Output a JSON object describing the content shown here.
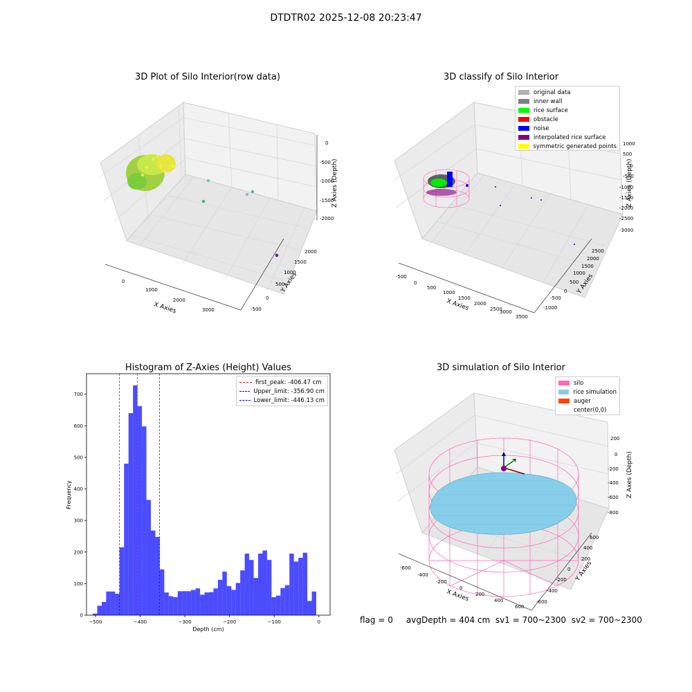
{
  "suptitle": "DTDTR02 2025-12-08 20:23:47",
  "panels": {
    "raw": {
      "title": "3D Plot of Silo Interior(row data)",
      "xlabel": "X Axies",
      "ylabel": "Y Axies",
      "zlabel": "Z Axies (Depth)",
      "xticks": [
        "0",
        "1000",
        "2000",
        "3000"
      ],
      "yticks": [
        "-500",
        "0",
        "500",
        "1000",
        "1500",
        "2000"
      ],
      "zticks": [
        "0",
        "-500",
        "-1000",
        "-1500",
        "-2000"
      ]
    },
    "classify": {
      "title": "3D classify of Silo Interior",
      "xlabel": "X Axies",
      "ylabel": "Y Axies",
      "zlabel": "Z Axies (Depth)",
      "xticks": [
        "-500",
        "0",
        "500",
        "1000",
        "1500",
        "2000",
        "2500",
        "3000",
        "3500"
      ],
      "yticks": [
        "-1000",
        "-500",
        "0",
        "500",
        "1000",
        "1500",
        "2000",
        "2500"
      ],
      "zticks": [
        "1000",
        "500",
        "0",
        "-500",
        "-1000",
        "-1500",
        "-2000",
        "-2500",
        "-3000"
      ],
      "legend": [
        {
          "label": "original data",
          "color": "#b0b0b0"
        },
        {
          "label": "inner wall",
          "color": "#808080"
        },
        {
          "label": "rice surface",
          "color": "#00ff00"
        },
        {
          "label": "obstacle",
          "color": "#ff0000"
        },
        {
          "label": "noise",
          "color": "#0000ff"
        },
        {
          "label": "interpolated rice surface",
          "color": "#800080"
        },
        {
          "label": "symmetric generated points",
          "color": "#ffff00"
        }
      ]
    },
    "simulation": {
      "title": "3D simulation of Silo Interior",
      "xlabel": "X Axies",
      "ylabel": "Y Axies",
      "zlabel": "Z Axes (Depth)",
      "xticks": [
        "-600",
        "-400",
        "-200",
        "0",
        "200",
        "400",
        "600"
      ],
      "yticks": [
        "-600",
        "-400",
        "-200",
        "0",
        "200",
        "400",
        "600"
      ],
      "zticks": [
        "200",
        "0",
        "-200",
        "-400",
        "-600",
        "-800"
      ],
      "legend": [
        {
          "label": "silo",
          "color": "#ff69b4"
        },
        {
          "label": "rice simulation",
          "color": "#87ceeb"
        },
        {
          "label": "auger",
          "color": "#ff4500"
        },
        {
          "label": "center(0,0)",
          "color": ""
        }
      ]
    }
  },
  "chart_data": {
    "type": "bar",
    "title": "Histogram of Z-Axies (Height) Values",
    "xlabel": "Depth (cm)",
    "ylabel": "Frequency",
    "xlim": [
      -520,
      25
    ],
    "ylim": [
      0,
      765
    ],
    "xticks": [
      -500,
      -400,
      -300,
      -200,
      -100,
      0
    ],
    "yticks": [
      0,
      100,
      200,
      300,
      400,
      500,
      600,
      700
    ],
    "bar_color": "#0000ff",
    "bin_width": 10,
    "bin_starts": [
      -506,
      -496,
      -486,
      -476,
      -466,
      -456,
      -446,
      -436,
      -426,
      -416,
      -406,
      -396,
      -386,
      -376,
      -366,
      -356,
      -346,
      -336,
      -326,
      -316,
      -306,
      -296,
      -286,
      -276,
      -266,
      -256,
      -246,
      -236,
      -226,
      -216,
      -206,
      -196,
      -186,
      -176,
      -166,
      -156,
      -146,
      -136,
      -126,
      -116,
      -106,
      -96,
      -86,
      -76,
      -66,
      -56,
      -46,
      -36,
      -26,
      -16,
      -6
    ],
    "values": [
      5,
      30,
      42,
      75,
      75,
      68,
      215,
      480,
      640,
      728,
      662,
      598,
      365,
      268,
      248,
      145,
      72,
      60,
      57,
      76,
      76,
      76,
      80,
      85,
      65,
      72,
      73,
      85,
      112,
      138,
      92,
      80,
      102,
      142,
      195,
      175,
      118,
      195,
      205,
      175,
      57,
      62,
      86,
      95,
      195,
      170,
      182,
      198,
      45,
      75,
      0
    ],
    "lines": [
      {
        "label": "first_peak: -406.47 cm",
        "x": -406.47,
        "color": "#ff0000"
      },
      {
        "label": "Upper_limit: -356.90 cm",
        "x": -356.9,
        "color": "#0000ff"
      },
      {
        "label": "Lower_limit: -446.13 cm",
        "x": -446.13,
        "color": "#0000ff"
      }
    ],
    "legend_position": "top-right"
  },
  "footer": {
    "flag": "flag = 0",
    "avg": "avgDepth = 404 cm",
    "sv1": "sv1 = 700~2300",
    "sv2": "sv2 = 700~2300"
  }
}
